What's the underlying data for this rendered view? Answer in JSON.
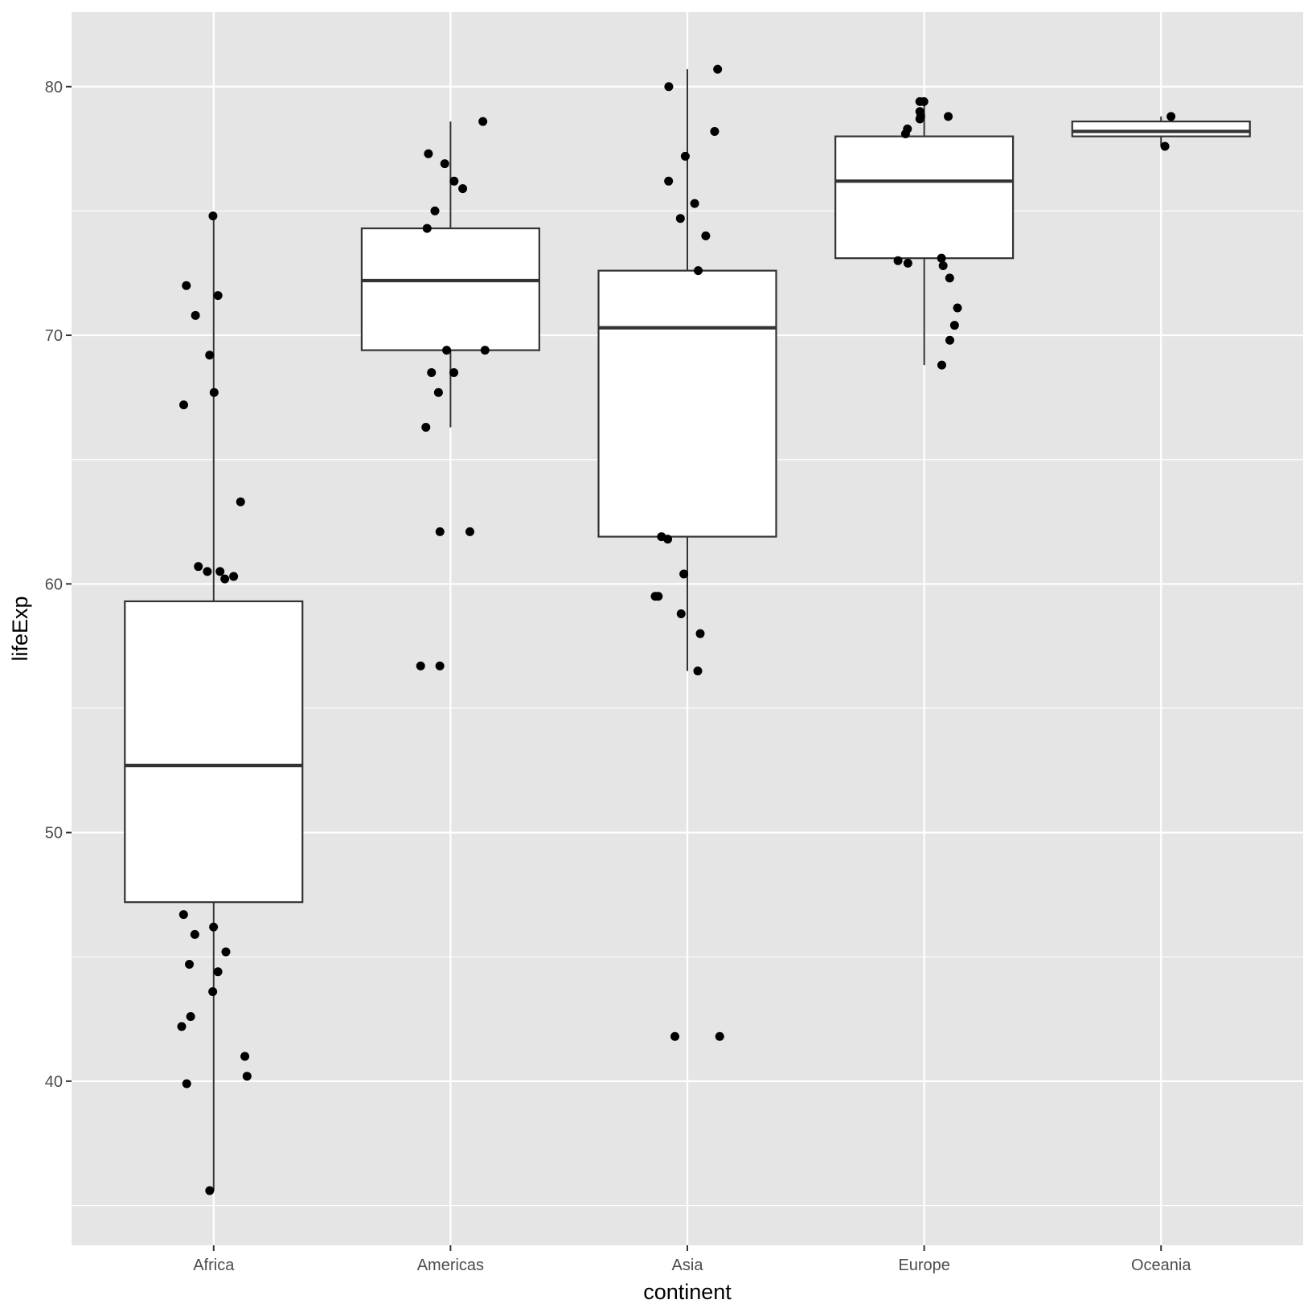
{
  "chart_data": {
    "type": "boxplot",
    "xlabel": "continent",
    "ylabel": "lifeExp",
    "ylim": [
      33.4,
      83
    ],
    "y_ticks": [
      40,
      50,
      60,
      70,
      80
    ],
    "grid": true,
    "panel_background": "#e5e5e5",
    "grid_color": "#ffffff",
    "categories": [
      "Africa",
      "Americas",
      "Asia",
      "Europe",
      "Oceania"
    ],
    "boxes": [
      {
        "category": "Africa",
        "min": 35.6,
        "q1": 47.2,
        "median": 52.7,
        "q3": 59.3,
        "max": 74.8
      },
      {
        "category": "Americas",
        "min": 66.3,
        "q1": 69.4,
        "median": 72.2,
        "q3": 74.3,
        "max": 78.6
      },
      {
        "category": "Asia",
        "min": 56.5,
        "q1": 61.9,
        "median": 70.3,
        "q3": 72.6,
        "max": 80.7
      },
      {
        "category": "Europe",
        "min": 68.8,
        "q1": 73.1,
        "median": 76.2,
        "q3": 78.0,
        "max": 79.4
      },
      {
        "category": "Oceania",
        "min": 77.6,
        "q1": 78.0,
        "median": 78.2,
        "q3": 78.6,
        "max": 78.8
      }
    ],
    "points": [
      {
        "category": "Africa",
        "values": [
          74.8,
          71.6,
          72.0,
          70.8,
          69.2,
          67.7,
          67.2,
          63.3,
          60.5,
          60.5,
          60.7,
          60.3,
          60.2,
          46.7,
          46.2,
          45.9,
          45.2,
          44.7,
          44.4,
          43.6,
          42.6,
          42.2,
          41.0,
          40.2,
          39.9,
          35.6
        ]
      },
      {
        "category": "Americas",
        "values": [
          78.6,
          77.3,
          76.9,
          76.2,
          75.9,
          75.0,
          74.3,
          69.4,
          69.4,
          68.5,
          68.5,
          67.7,
          66.3,
          62.1,
          62.1,
          56.7,
          56.7
        ]
      },
      {
        "category": "Asia",
        "values": [
          80.7,
          80.0,
          78.2,
          77.2,
          76.2,
          75.3,
          74.7,
          74.0,
          72.6,
          61.9,
          61.8,
          60.4,
          59.5,
          59.5,
          58.8,
          58.0,
          56.5,
          41.8,
          41.8
        ]
      },
      {
        "category": "Europe",
        "values": [
          79.4,
          79.4,
          79.0,
          78.8,
          78.8,
          78.7,
          78.3,
          78.1,
          73.1,
          73.0,
          72.9,
          72.8,
          72.3,
          71.1,
          70.4,
          69.8,
          68.8
        ]
      },
      {
        "category": "Oceania",
        "values": [
          78.8,
          77.6
        ]
      }
    ]
  }
}
